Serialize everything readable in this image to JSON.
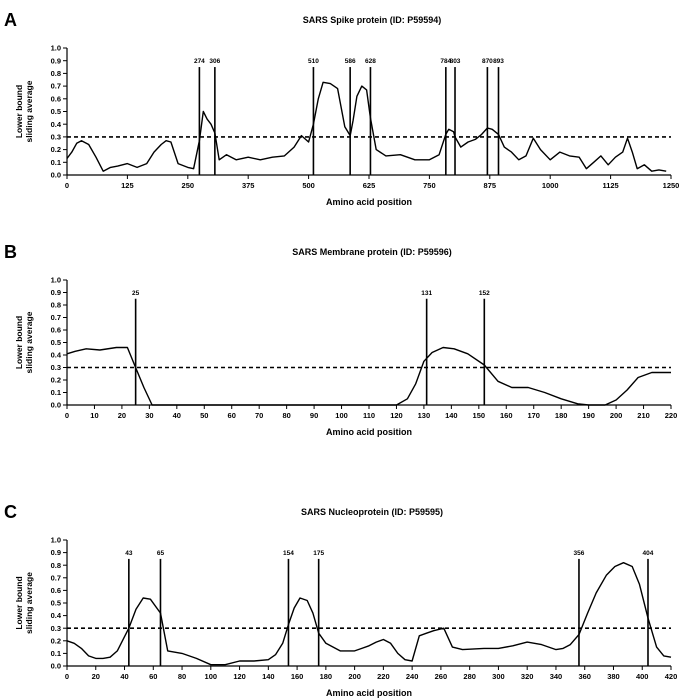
{
  "chart_data": [
    {
      "type": "line",
      "panel_letter": "A",
      "title": "SARS Spike protein (ID: P59594)",
      "xlabel": "Amino acid position",
      "ylabel": [
        "Lower bound",
        "sliding average"
      ],
      "xlim": [
        0,
        1250
      ],
      "ylim": [
        0,
        1.0
      ],
      "xticks": [
        0,
        125,
        250,
        375,
        500,
        625,
        750,
        875,
        1000,
        1125,
        1250
      ],
      "yticks": [
        0.0,
        0.1,
        0.2,
        0.3,
        0.4,
        0.5,
        0.6,
        0.7,
        0.8,
        0.9,
        1.0
      ],
      "threshold": 0.3,
      "markers": [
        274,
        306,
        510,
        586,
        628,
        784,
        803,
        870,
        893
      ],
      "grid": false,
      "legend": "none",
      "series": [
        {
          "color": "#000000",
          "x": [
            0,
            10,
            20,
            30,
            45,
            60,
            75,
            90,
            105,
            125,
            145,
            165,
            180,
            195,
            205,
            215,
            230,
            250,
            262,
            274,
            282,
            290,
            298,
            306,
            315,
            330,
            350,
            375,
            400,
            425,
            450,
            470,
            485,
            500,
            510,
            520,
            530,
            545,
            560,
            575,
            586,
            592,
            600,
            610,
            620,
            628,
            640,
            660,
            690,
            720,
            750,
            770,
            784,
            790,
            800,
            803,
            815,
            830,
            845,
            858,
            870,
            880,
            893,
            905,
            920,
            935,
            950,
            965,
            980,
            1000,
            1020,
            1040,
            1060,
            1075,
            1090,
            1105,
            1120,
            1135,
            1150,
            1160,
            1170,
            1180,
            1195,
            1210,
            1225,
            1240
          ],
          "y": [
            0.13,
            0.18,
            0.25,
            0.27,
            0.24,
            0.14,
            0.03,
            0.06,
            0.07,
            0.09,
            0.06,
            0.09,
            0.18,
            0.24,
            0.27,
            0.26,
            0.09,
            0.06,
            0.05,
            0.27,
            0.5,
            0.44,
            0.4,
            0.33,
            0.12,
            0.16,
            0.12,
            0.14,
            0.12,
            0.14,
            0.15,
            0.22,
            0.31,
            0.26,
            0.4,
            0.6,
            0.73,
            0.72,
            0.68,
            0.38,
            0.31,
            0.43,
            0.62,
            0.7,
            0.67,
            0.45,
            0.2,
            0.15,
            0.16,
            0.12,
            0.12,
            0.16,
            0.32,
            0.36,
            0.34,
            0.3,
            0.22,
            0.26,
            0.28,
            0.32,
            0.37,
            0.36,
            0.32,
            0.22,
            0.18,
            0.12,
            0.15,
            0.29,
            0.2,
            0.12,
            0.18,
            0.15,
            0.14,
            0.05,
            0.1,
            0.15,
            0.08,
            0.14,
            0.18,
            0.29,
            0.18,
            0.05,
            0.08,
            0.03,
            0.04,
            0.03
          ]
        }
      ]
    },
    {
      "type": "line",
      "panel_letter": "B",
      "title": "SARS Membrane protein (ID: P59596)",
      "xlabel": "Amino acid position",
      "ylabel": [
        "Lower bound",
        "sliding average"
      ],
      "xlim": [
        0,
        220
      ],
      "ylim": [
        0,
        1.0
      ],
      "xticks": [
        0,
        10,
        20,
        30,
        40,
        50,
        60,
        70,
        80,
        90,
        100,
        110,
        120,
        130,
        140,
        150,
        160,
        170,
        180,
        190,
        200,
        210,
        220
      ],
      "yticks": [
        0.0,
        0.1,
        0.2,
        0.3,
        0.4,
        0.5,
        0.6,
        0.7,
        0.8,
        0.9,
        1.0
      ],
      "threshold": 0.3,
      "markers": [
        25,
        131,
        152
      ],
      "grid": false,
      "legend": "none",
      "series": [
        {
          "color": "#000000",
          "x": [
            0,
            3,
            7,
            12,
            18,
            22,
            25,
            28,
            31,
            40,
            80,
            120,
            124,
            127,
            130,
            133,
            137,
            141,
            146,
            152,
            157,
            162,
            168,
            174,
            180,
            186,
            190,
            196,
            200,
            204,
            208,
            213,
            220
          ],
          "y": [
            0.41,
            0.43,
            0.45,
            0.44,
            0.46,
            0.46,
            0.3,
            0.14,
            0.0,
            0.0,
            0.0,
            0.0,
            0.05,
            0.17,
            0.35,
            0.42,
            0.46,
            0.45,
            0.41,
            0.32,
            0.19,
            0.14,
            0.14,
            0.1,
            0.05,
            0.01,
            0.0,
            0.0,
            0.04,
            0.12,
            0.22,
            0.26,
            0.26
          ]
        }
      ]
    },
    {
      "type": "line",
      "panel_letter": "C",
      "title": "SARS Nucleoprotein (ID: P59595)",
      "xlabel": "Amino acid position",
      "ylabel": [
        "Lower bound",
        "sliding average"
      ],
      "xlim": [
        0,
        420
      ],
      "ylim": [
        0,
        1.0
      ],
      "xticks": [
        0,
        20,
        40,
        60,
        80,
        100,
        120,
        140,
        160,
        180,
        200,
        220,
        240,
        260,
        280,
        300,
        320,
        340,
        360,
        380,
        400,
        420
      ],
      "yticks": [
        0.0,
        0.1,
        0.2,
        0.3,
        0.4,
        0.5,
        0.6,
        0.7,
        0.8,
        0.9,
        1.0
      ],
      "threshold": 0.3,
      "markers": [
        43,
        65,
        154,
        175,
        356,
        404
      ],
      "grid": false,
      "legend": "none",
      "series": [
        {
          "color": "#000000",
          "x": [
            0,
            5,
            10,
            15,
            20,
            25,
            30,
            35,
            43,
            48,
            53,
            58,
            65,
            70,
            80,
            90,
            100,
            110,
            120,
            130,
            140,
            145,
            150,
            154,
            158,
            162,
            167,
            171,
            175,
            180,
            190,
            200,
            205,
            210,
            215,
            220,
            225,
            230,
            235,
            240,
            245,
            250,
            255,
            262,
            268,
            275,
            290,
            300,
            310,
            320,
            330,
            340,
            345,
            350,
            356,
            362,
            368,
            375,
            381,
            387,
            393,
            398,
            404,
            410,
            415,
            420
          ],
          "y": [
            0.2,
            0.18,
            0.14,
            0.08,
            0.06,
            0.06,
            0.07,
            0.12,
            0.3,
            0.45,
            0.54,
            0.53,
            0.42,
            0.12,
            0.1,
            0.06,
            0.01,
            0.01,
            0.04,
            0.04,
            0.05,
            0.09,
            0.18,
            0.33,
            0.46,
            0.54,
            0.52,
            0.42,
            0.26,
            0.18,
            0.12,
            0.12,
            0.14,
            0.16,
            0.19,
            0.21,
            0.18,
            0.1,
            0.05,
            0.04,
            0.24,
            0.26,
            0.28,
            0.3,
            0.15,
            0.13,
            0.14,
            0.14,
            0.16,
            0.19,
            0.17,
            0.13,
            0.14,
            0.17,
            0.25,
            0.42,
            0.58,
            0.72,
            0.79,
            0.82,
            0.79,
            0.65,
            0.38,
            0.15,
            0.08,
            0.07
          ]
        }
      ]
    }
  ]
}
